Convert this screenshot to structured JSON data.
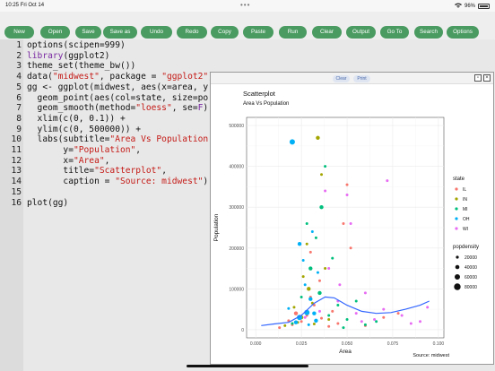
{
  "status": {
    "time": "10:25",
    "date": "Fri Oct 14",
    "dots": "•••",
    "battery": "96%"
  },
  "toolbar": {
    "buttons": [
      "New",
      "Open",
      "Save",
      "Save as",
      "Undo",
      "Redo",
      "Copy",
      "Paste",
      "Run",
      "Clear",
      "Output",
      "Go To",
      "Search",
      "Options"
    ]
  },
  "editor": {
    "lines": [
      {
        "n": "1",
        "segs": [
          [
            "",
            "options(scipen=999)"
          ]
        ]
      },
      {
        "n": "2",
        "segs": [
          [
            "f",
            "library"
          ],
          [
            "",
            "(ggplot2)"
          ]
        ]
      },
      {
        "n": "3",
        "segs": [
          [
            "",
            "theme_set(theme_bw())"
          ]
        ]
      },
      {
        "n": "4",
        "segs": [
          [
            "",
            "data("
          ],
          [
            "s",
            "\"midwest\""
          ],
          [
            "",
            ", package = "
          ],
          [
            "s",
            "\"ggplot2\""
          ],
          [
            "",
            ")"
          ]
        ]
      },
      {
        "n": "5",
        "segs": [
          [
            "",
            "gg <- ggplot(midwest, aes(x=area, y"
          ]
        ]
      },
      {
        "n": "6",
        "segs": [
          [
            "",
            "  geom_point(aes(col=state, size=po"
          ]
        ]
      },
      {
        "n": "7",
        "segs": [
          [
            "",
            "  geom_smooth(method="
          ],
          [
            "s",
            "\"loess\""
          ],
          [
            "",
            ", se="
          ],
          [
            "f",
            "F"
          ],
          [
            "",
            ")"
          ]
        ]
      },
      {
        "n": "8",
        "segs": [
          [
            "",
            "  xlim(c(0, 0.1)) +"
          ]
        ]
      },
      {
        "n": "9",
        "segs": [
          [
            "",
            "  ylim(c(0, 500000)) +"
          ]
        ]
      },
      {
        "n": "10",
        "segs": [
          [
            "",
            "  labs(subtitle="
          ],
          [
            "s",
            "\"Area Vs Population"
          ]
        ]
      },
      {
        "n": "11",
        "segs": [
          [
            "",
            "       y="
          ],
          [
            "s",
            "\"Population\""
          ],
          [
            "",
            ","
          ]
        ]
      },
      {
        "n": "12",
        "segs": [
          [
            "",
            "       x="
          ],
          [
            "s",
            "\"Area\""
          ],
          [
            "",
            ","
          ]
        ]
      },
      {
        "n": "13",
        "segs": [
          [
            "",
            "       title="
          ],
          [
            "s",
            "\"Scatterplot\""
          ],
          [
            "",
            ","
          ]
        ]
      },
      {
        "n": "14",
        "segs": [
          [
            "",
            "       caption = "
          ],
          [
            "s",
            "\"Source: midwest\""
          ],
          [
            "",
            ")"
          ]
        ]
      },
      {
        "n": "15",
        "segs": [
          [
            "",
            ""
          ]
        ]
      },
      {
        "n": "16",
        "segs": [
          [
            "",
            "plot(gg)"
          ]
        ]
      }
    ]
  },
  "plot_window": {
    "clear_label": "Clear",
    "print_label": "Print",
    "restore_icon": "restore-icon",
    "close_icon": "close-icon"
  },
  "colors": {
    "accent": "#4a9b61",
    "IL": "#F8766D",
    "IN": "#A3A500",
    "MI": "#00BF7D",
    "OH": "#00B0F6",
    "WI": "#E76BF3",
    "smooth": "#3366FF"
  },
  "chart_data": {
    "type": "scatter",
    "title": "Scatterplot",
    "subtitle": "Area Vs Population",
    "xlabel": "Area",
    "ylabel": "Population",
    "caption": "Source: midwest",
    "xlim": [
      -0.005,
      0.103
    ],
    "ylim": [
      -20000,
      520000
    ],
    "xticks": [
      0.0,
      0.025,
      0.05,
      0.075,
      0.1
    ],
    "xtick_labels": [
      "0.000",
      "0.025",
      "0.050",
      "0.075",
      "0.100"
    ],
    "yticks": [
      0,
      100000,
      200000,
      300000,
      400000,
      500000
    ],
    "ytick_labels": [
      "0",
      "100000",
      "200000",
      "300000",
      "400000",
      "500000"
    ],
    "grid": true,
    "legend_state": {
      "title": "state",
      "entries": [
        "IL",
        "IN",
        "MI",
        "OH",
        "WI"
      ]
    },
    "legend_size": {
      "title": "popdensity",
      "entries": [
        "20000",
        "40000",
        "60000",
        "80000"
      ]
    },
    "series": [
      {
        "name": "IL",
        "points": [
          [
            0.013,
            5000,
            1
          ],
          [
            0.02,
            12000,
            1
          ],
          [
            0.025,
            20000,
            1
          ],
          [
            0.028,
            35000,
            1
          ],
          [
            0.032,
            60000,
            1
          ],
          [
            0.036,
            28000,
            1
          ],
          [
            0.04,
            8000,
            1
          ],
          [
            0.045,
            15000,
            1
          ],
          [
            0.022,
            40000,
            2
          ],
          [
            0.03,
            80000,
            1
          ],
          [
            0.035,
            120000,
            1
          ],
          [
            0.048,
            260000,
            1
          ],
          [
            0.05,
            355000,
            1
          ],
          [
            0.06,
            10000,
            1
          ],
          [
            0.07,
            30000,
            1
          ],
          [
            0.078,
            40000,
            1
          ],
          [
            0.052,
            200000,
            1
          ],
          [
            0.03,
            190000,
            1
          ],
          [
            0.018,
            22000,
            1
          ],
          [
            0.042,
            45000,
            1
          ]
        ]
      },
      {
        "name": "IN",
        "points": [
          [
            0.016,
            10000,
            1
          ],
          [
            0.021,
            55000,
            1
          ],
          [
            0.025,
            30000,
            2
          ],
          [
            0.029,
            100000,
            2
          ],
          [
            0.032,
            14000,
            1
          ],
          [
            0.034,
            470000,
            2
          ],
          [
            0.038,
            150000,
            1
          ],
          [
            0.031,
            65000,
            1
          ],
          [
            0.026,
            130000,
            1
          ],
          [
            0.023,
            18000,
            1
          ],
          [
            0.04,
            25000,
            1
          ],
          [
            0.028,
            210000,
            1
          ],
          [
            0.036,
            380000,
            1
          ]
        ]
      },
      {
        "name": "MI",
        "points": [
          [
            0.02,
            15000,
            1
          ],
          [
            0.025,
            80000,
            1
          ],
          [
            0.03,
            150000,
            2
          ],
          [
            0.033,
            225000,
            1
          ],
          [
            0.036,
            300000,
            2
          ],
          [
            0.04,
            35000,
            1
          ],
          [
            0.045,
            60000,
            1
          ],
          [
            0.05,
            25000,
            1
          ],
          [
            0.055,
            70000,
            1
          ],
          [
            0.06,
            12000,
            1
          ],
          [
            0.066,
            20000,
            1
          ],
          [
            0.038,
            400000,
            1
          ],
          [
            0.028,
            260000,
            1
          ],
          [
            0.042,
            175000,
            1
          ],
          [
            0.048,
            5000,
            1
          ],
          [
            0.035,
            90000,
            2
          ]
        ]
      },
      {
        "name": "OH",
        "points": [
          [
            0.02,
            460000,
            3
          ],
          [
            0.024,
            210000,
            2
          ],
          [
            0.026,
            170000,
            1
          ],
          [
            0.028,
            42000,
            3
          ],
          [
            0.03,
            75000,
            2
          ],
          [
            0.032,
            40000,
            2
          ],
          [
            0.022,
            18000,
            2
          ],
          [
            0.034,
            140000,
            1
          ],
          [
            0.018,
            52000,
            1
          ],
          [
            0.027,
            110000,
            1
          ],
          [
            0.031,
            240000,
            1
          ],
          [
            0.029,
            12000,
            1
          ],
          [
            0.024,
            30000,
            3
          ],
          [
            0.033,
            22000,
            2
          ]
        ]
      },
      {
        "name": "WI",
        "points": [
          [
            0.027,
            30000,
            1
          ],
          [
            0.035,
            45000,
            1
          ],
          [
            0.04,
            150000,
            1
          ],
          [
            0.045,
            70000,
            1
          ],
          [
            0.05,
            330000,
            1
          ],
          [
            0.055,
            40000,
            1
          ],
          [
            0.06,
            90000,
            1
          ],
          [
            0.065,
            25000,
            1
          ],
          [
            0.07,
            50000,
            1
          ],
          [
            0.072,
            365000,
            1
          ],
          [
            0.08,
            35000,
            1
          ],
          [
            0.085,
            15000,
            1
          ],
          [
            0.09,
            20000,
            1
          ],
          [
            0.094,
            55000,
            1
          ],
          [
            0.058,
            20000,
            1
          ],
          [
            0.038,
            340000,
            1
          ],
          [
            0.046,
            110000,
            1
          ],
          [
            0.052,
            260000,
            1
          ]
        ]
      }
    ],
    "smooth": {
      "name": "loess",
      "points": [
        [
          0.003,
          10000
        ],
        [
          0.01,
          14000
        ],
        [
          0.018,
          18000
        ],
        [
          0.025,
          35000
        ],
        [
          0.032,
          65000
        ],
        [
          0.038,
          80000
        ],
        [
          0.043,
          78000
        ],
        [
          0.05,
          60000
        ],
        [
          0.058,
          45000
        ],
        [
          0.066,
          40000
        ],
        [
          0.074,
          42000
        ],
        [
          0.082,
          50000
        ],
        [
          0.09,
          60000
        ],
        [
          0.095,
          70000
        ]
      ]
    }
  }
}
